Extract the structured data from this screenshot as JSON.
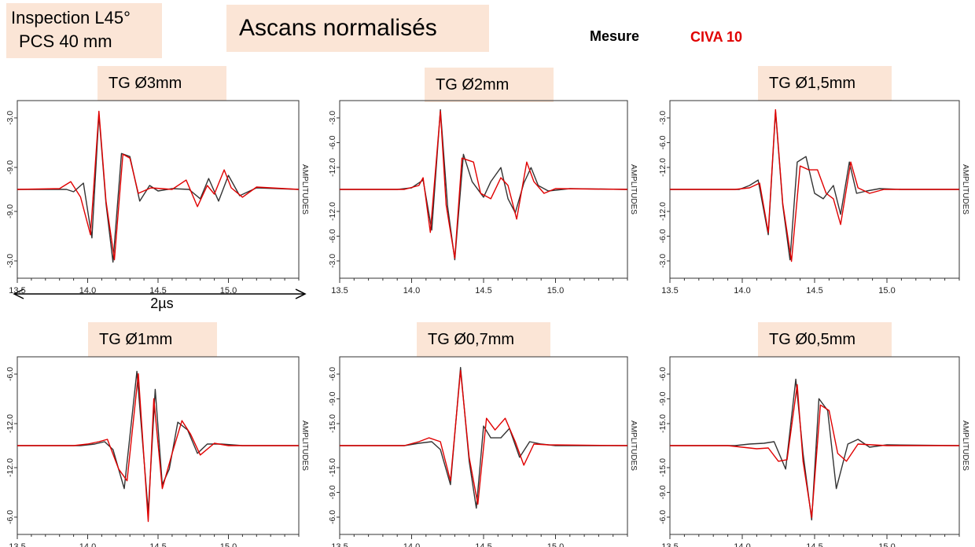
{
  "header": {
    "inspection_line1": "Inspection L45°",
    "inspection_line2": "PCS 40 mm",
    "title": "Ascans normalisés"
  },
  "legend": {
    "measure_label": "Mesure",
    "civa_label": "CIVA 10",
    "measure_color": "#333333",
    "civa_color": "#e00000"
  },
  "annotation": {
    "duration": "2µs"
  },
  "chart_data": [
    {
      "type": "line",
      "title": "TG Ø3mm",
      "ylabel": "AMPLITUDES",
      "xlim": [
        13.5,
        15.5
      ],
      "xticks": [
        "13.5",
        "14.0",
        "14.5",
        "15.0"
      ],
      "yticks_top": [
        "-3.0",
        "-9.0"
      ],
      "yticks_bottom": [
        "-9.0",
        "-3.0"
      ],
      "series": [
        {
          "name": "Mesure",
          "x": [
            13.5,
            13.85,
            13.9,
            13.97,
            14.03,
            14.08,
            14.13,
            14.18,
            14.24,
            14.3,
            14.37,
            14.44,
            14.5,
            14.6,
            14.72,
            14.8,
            14.86,
            14.93,
            15.0,
            15.08,
            15.2,
            15.5
          ],
          "y": [
            0,
            0,
            -0.03,
            0.08,
            -0.62,
            0.96,
            -0.18,
            -0.93,
            0.46,
            0.42,
            -0.15,
            0.05,
            -0.02,
            0.01,
            0,
            -0.12,
            0.14,
            -0.15,
            0.18,
            -0.08,
            0.02,
            0
          ]
        },
        {
          "name": "CIVA 10",
          "x": [
            13.5,
            13.8,
            13.88,
            13.95,
            14.02,
            14.08,
            14.13,
            14.19,
            14.25,
            14.3,
            14.36,
            14.45,
            14.6,
            14.7,
            14.78,
            14.85,
            14.9,
            14.97,
            15.02,
            15.1,
            15.2,
            15.5
          ],
          "y": [
            0,
            0.01,
            0.1,
            -0.1,
            -0.58,
            1.0,
            -0.15,
            -0.9,
            0.45,
            0.4,
            -0.05,
            0.02,
            0,
            0.12,
            -0.22,
            0.05,
            -0.06,
            0.25,
            0.02,
            -0.1,
            0.03,
            0
          ]
        }
      ]
    },
    {
      "type": "line",
      "title": "TG Ø2mm",
      "ylabel": "AMPLITUDES",
      "xlim": [
        13.5,
        15.5
      ],
      "xticks": [
        "13.5",
        "14.0",
        "14.5",
        "15.0"
      ],
      "yticks_top": [
        "-3.0",
        "-6.0",
        "-12.0"
      ],
      "yticks_bottom": [
        "-12.0",
        "-6.0",
        "-3.0"
      ],
      "series": [
        {
          "name": "Mesure",
          "x": [
            13.5,
            13.9,
            14.0,
            14.08,
            14.14,
            14.2,
            14.25,
            14.3,
            14.36,
            14.42,
            14.5,
            14.55,
            14.62,
            14.67,
            14.72,
            14.78,
            14.83,
            14.88,
            14.95,
            15.1,
            15.5
          ],
          "y": [
            0,
            0,
            0.02,
            0.12,
            -0.52,
            1.02,
            -0.22,
            -0.9,
            0.45,
            0.1,
            -0.1,
            0.1,
            0.28,
            -0.12,
            -0.3,
            0.08,
            0.28,
            0.05,
            -0.02,
            0.01,
            0
          ]
        },
        {
          "name": "CIVA 10",
          "x": [
            13.5,
            13.95,
            14.05,
            14.08,
            14.13,
            14.2,
            14.24,
            14.3,
            14.35,
            14.43,
            14.48,
            14.55,
            14.62,
            14.67,
            14.73,
            14.8,
            14.85,
            14.92,
            15.0,
            15.5
          ],
          "y": [
            0,
            0,
            0.05,
            0.15,
            -0.55,
            1.0,
            -0.2,
            -0.88,
            0.4,
            0.35,
            -0.05,
            -0.12,
            0.15,
            0.05,
            -0.38,
            0.35,
            0.1,
            -0.05,
            0.01,
            0
          ]
        }
      ]
    },
    {
      "type": "line",
      "title": "TG Ø1,5mm",
      "ylabel": "AMPLITUDES",
      "xlim": [
        13.5,
        15.5
      ],
      "xticks": [
        "13.5",
        "14.0",
        "14.5",
        "15.0"
      ],
      "yticks_top": [
        "-3.0",
        "-6.0",
        "-12.0"
      ],
      "yticks_bottom": [
        "-12.0",
        "-6.0",
        "-3.0"
      ],
      "series": [
        {
          "name": "Mesure",
          "x": [
            13.5,
            13.98,
            14.05,
            14.11,
            14.18,
            14.23,
            14.28,
            14.33,
            14.38,
            14.44,
            14.5,
            14.56,
            14.63,
            14.68,
            14.74,
            14.79,
            14.86,
            14.95,
            15.1,
            15.5
          ],
          "y": [
            0,
            0,
            0.05,
            0.12,
            -0.58,
            1.0,
            -0.2,
            -0.9,
            0.35,
            0.42,
            -0.05,
            -0.12,
            0.05,
            -0.32,
            0.35,
            -0.05,
            -0.02,
            0.01,
            0,
            0
          ]
        },
        {
          "name": "CIVA 10",
          "x": [
            13.5,
            13.95,
            14.05,
            14.12,
            14.18,
            14.23,
            14.28,
            14.34,
            14.4,
            14.46,
            14.52,
            14.58,
            14.63,
            14.68,
            14.75,
            14.8,
            14.88,
            14.98,
            15.5
          ],
          "y": [
            0,
            0,
            0.02,
            0.08,
            -0.55,
            1.02,
            -0.18,
            -0.92,
            0.3,
            0.25,
            0.25,
            -0.05,
            -0.12,
            -0.45,
            0.35,
            0.02,
            -0.05,
            0,
            0
          ]
        }
      ]
    },
    {
      "type": "line",
      "title": "TG Ø1mm",
      "ylabel": "AMPLITUDES",
      "xlim": [
        13.5,
        15.5
      ],
      "xticks": [
        "13.5",
        "14.0",
        "14.5",
        "15.0"
      ],
      "yticks_top": [
        "-6.0",
        "-12.0"
      ],
      "yticks_bottom": [
        "-12.0",
        "-6.0"
      ],
      "series": [
        {
          "name": "Mesure",
          "x": [
            13.5,
            13.95,
            14.05,
            14.12,
            14.18,
            14.26,
            14.35,
            14.43,
            14.48,
            14.53,
            14.58,
            14.64,
            14.71,
            14.78,
            14.85,
            14.95,
            15.1,
            15.5
          ],
          "y": [
            0,
            0,
            0.02,
            0.05,
            -0.05,
            -0.55,
            0.95,
            -0.85,
            0.72,
            -0.5,
            -0.3,
            0.3,
            0.2,
            -0.1,
            0.02,
            0.02,
            0,
            0
          ]
        },
        {
          "name": "CIVA 10",
          "x": [
            13.5,
            13.9,
            14.0,
            14.08,
            14.14,
            14.22,
            14.28,
            14.36,
            14.43,
            14.47,
            14.53,
            14.6,
            14.67,
            14.73,
            14.8,
            14.9,
            15.0,
            15.5
          ],
          "y": [
            0,
            0,
            0.02,
            0.05,
            0.08,
            -0.3,
            -0.45,
            0.92,
            -0.97,
            0.6,
            -0.55,
            -0.1,
            0.32,
            0.15,
            -0.12,
            0.03,
            0,
            0
          ]
        }
      ]
    },
    {
      "type": "line",
      "title": "TG Ø0,7mm",
      "ylabel": "AMPLITUDES",
      "xlim": [
        13.5,
        15.5
      ],
      "xticks": [
        "13.5",
        "14.0",
        "14.5",
        "15.0"
      ],
      "yticks_top": [
        "-6.0",
        "-9.0",
        "-15.0"
      ],
      "yticks_bottom": [
        "-15.0",
        "-9.0",
        "-6.0"
      ],
      "series": [
        {
          "name": "Mesure",
          "x": [
            13.5,
            13.95,
            14.05,
            14.14,
            14.2,
            14.27,
            14.34,
            14.4,
            14.45,
            14.5,
            14.55,
            14.62,
            14.68,
            14.75,
            14.82,
            14.9,
            15.0,
            15.5
          ],
          "y": [
            0,
            0,
            0.03,
            0.05,
            -0.05,
            -0.5,
            1.0,
            -0.2,
            -0.8,
            0.25,
            0.1,
            0.1,
            0.22,
            -0.15,
            0.05,
            0.02,
            0,
            0
          ]
        },
        {
          "name": "CIVA 10",
          "x": [
            13.5,
            13.95,
            14.05,
            14.12,
            14.2,
            14.27,
            14.34,
            14.4,
            14.46,
            14.52,
            14.58,
            14.65,
            14.72,
            14.78,
            14.85,
            14.95,
            15.5
          ],
          "y": [
            0,
            0,
            0.05,
            0.1,
            0.05,
            -0.45,
            0.96,
            -0.15,
            -0.75,
            0.35,
            0.2,
            0.35,
            0.05,
            -0.25,
            0.02,
            0.01,
            0
          ]
        }
      ]
    },
    {
      "type": "line",
      "title": "TG Ø0,5mm",
      "ylabel": "AMPLITUDES",
      "xlim": [
        13.5,
        15.5
      ],
      "xticks": [
        "13.5",
        "14.0",
        "14.5",
        "15.0"
      ],
      "yticks_top": [
        "-6.0",
        "-9.0",
        "-15.0"
      ],
      "yticks_bottom": [
        "-15.0",
        "-9.0",
        "-6.0"
      ],
      "series": [
        {
          "name": "Mesure",
          "x": [
            13.5,
            13.95,
            14.05,
            14.15,
            14.22,
            14.3,
            14.37,
            14.42,
            14.48,
            14.53,
            14.59,
            14.65,
            14.73,
            14.8,
            14.88,
            15.0,
            15.5
          ],
          "y": [
            0,
            0,
            0.02,
            0.03,
            0.05,
            -0.3,
            0.85,
            -0.1,
            -0.95,
            0.6,
            0.45,
            -0.55,
            0.02,
            0.08,
            -0.02,
            0.01,
            0
          ]
        },
        {
          "name": "CIVA 10",
          "x": [
            13.5,
            13.9,
            14.0,
            14.1,
            14.18,
            14.25,
            14.31,
            14.38,
            14.42,
            14.48,
            14.54,
            14.6,
            14.66,
            14.72,
            14.8,
            14.9,
            15.0,
            15.5
          ],
          "y": [
            0,
            0,
            -0.02,
            -0.04,
            -0.03,
            -0.2,
            -0.18,
            0.78,
            -0.2,
            -0.92,
            0.52,
            0.45,
            -0.1,
            -0.2,
            0.02,
            0.01,
            0,
            0
          ]
        }
      ]
    }
  ]
}
